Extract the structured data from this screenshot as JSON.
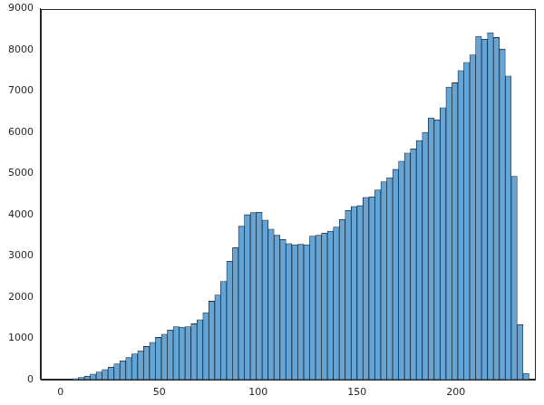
{
  "chart_data": {
    "type": "histogram",
    "bins": [
      6,
      9,
      12,
      15,
      18,
      21,
      24,
      27,
      30,
      33,
      36,
      39,
      42,
      45,
      48,
      51,
      54,
      57,
      60,
      63,
      66,
      69,
      72,
      75,
      78,
      81,
      84,
      87,
      90,
      93,
      96,
      99,
      102,
      105,
      108,
      111,
      114,
      117,
      120,
      123,
      126,
      129,
      132,
      135,
      138,
      141,
      144,
      147,
      150,
      153,
      156,
      159,
      162,
      165,
      168,
      171,
      174,
      177,
      180,
      183,
      186,
      189,
      192,
      195,
      198,
      201,
      204,
      207,
      210,
      213,
      216,
      219,
      222,
      225,
      228,
      231,
      234,
      237
    ],
    "values": [
      20,
      50,
      80,
      130,
      180,
      240,
      300,
      380,
      450,
      530,
      620,
      700,
      800,
      900,
      1020,
      1100,
      1200,
      1280,
      1270,
      1280,
      1350,
      1450,
      1620,
      1900,
      2050,
      2380,
      2870,
      3200,
      3720,
      4000,
      4050,
      4060,
      3870,
      3650,
      3500,
      3400,
      3300,
      3270,
      3280,
      3270,
      3480,
      3500,
      3550,
      3600,
      3700,
      3880,
      4100,
      4200,
      4220,
      4420,
      4430,
      4600,
      4800,
      4900,
      5100,
      5300,
      5500,
      5600,
      5800,
      6000,
      6350,
      6300,
      6600,
      7100,
      7200,
      7500,
      7700,
      7880,
      8330,
      8260,
      8420,
      8300,
      8020,
      7370,
      4930,
      1330,
      150
    ],
    "color": "#64a5d6",
    "xlim": [
      -10,
      240
    ],
    "xticks": [
      0,
      50,
      100,
      150,
      200
    ],
    "ylim": [
      0,
      9000
    ],
    "yticks": [
      0,
      1000,
      2000,
      3000,
      4000,
      5000,
      6000,
      7000,
      8000,
      9000
    ],
    "grid": false
  }
}
